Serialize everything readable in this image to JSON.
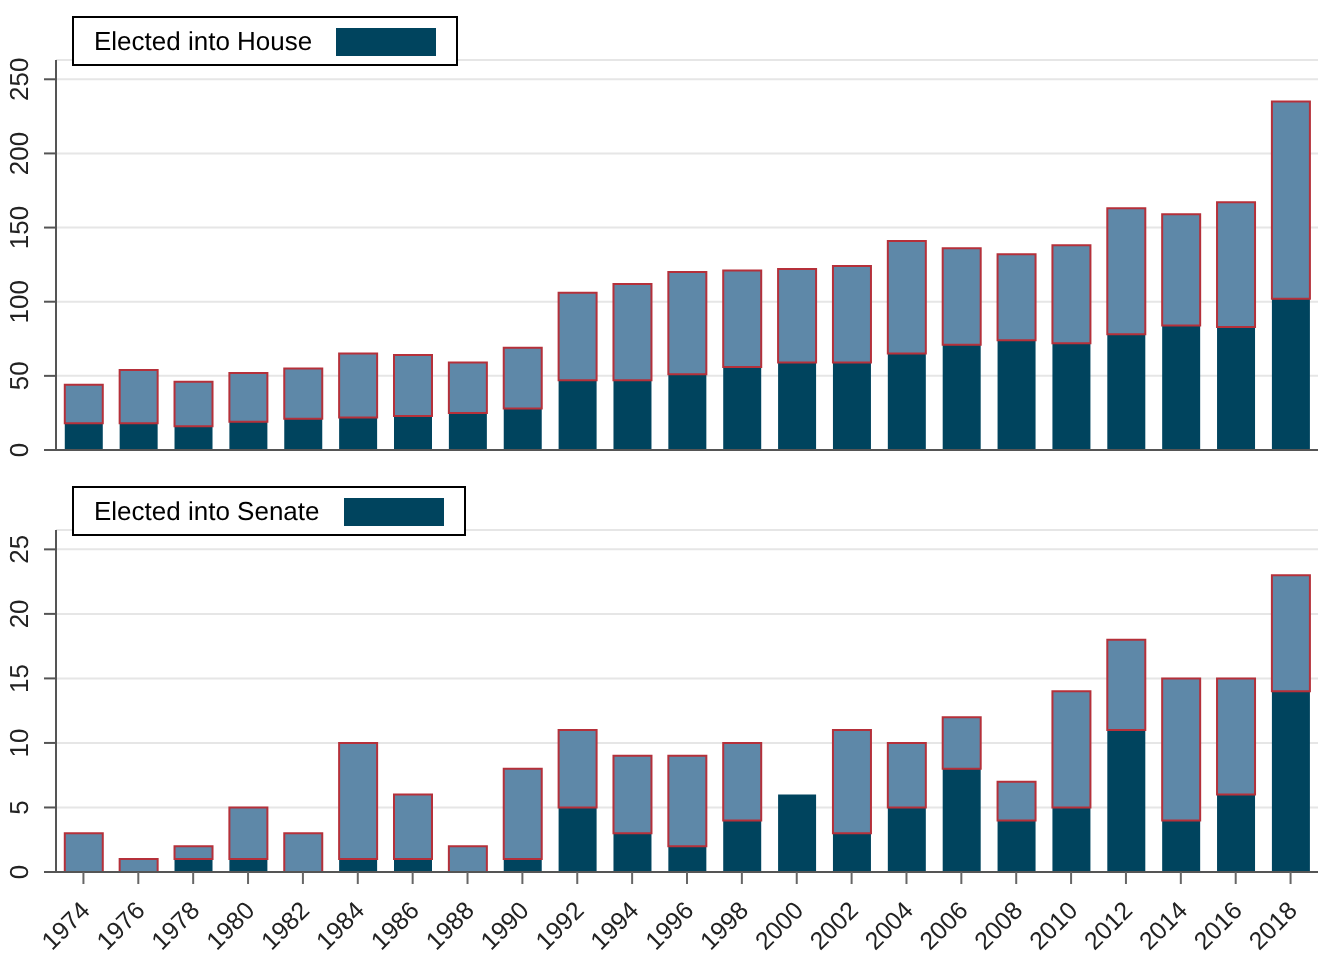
{
  "chart_data": [
    {
      "type": "bar",
      "stacked": true,
      "categories": [
        "1974",
        "1976",
        "1978",
        "1980",
        "1982",
        "1984",
        "1986",
        "1988",
        "1990",
        "1992",
        "1994",
        "1996",
        "1998",
        "2000",
        "2002",
        "2004",
        "2006",
        "2008",
        "2010",
        "2012",
        "2014",
        "2016",
        "2018"
      ],
      "series": [
        {
          "name": "Elected into House",
          "color": "#00445e",
          "values": [
            18,
            18,
            16,
            19,
            21,
            22,
            23,
            25,
            28,
            47,
            47,
            51,
            56,
            59,
            59,
            65,
            71,
            74,
            72,
            78,
            84,
            83,
            102
          ]
        },
        {
          "color": "#5e88a8",
          "values": [
            26,
            36,
            30,
            33,
            34,
            43,
            41,
            34,
            41,
            59,
            65,
            69,
            65,
            63,
            65,
            76,
            65,
            58,
            66,
            85,
            75,
            84,
            133
          ]
        }
      ],
      "ylim": [
        0,
        263
      ],
      "yticks": [
        0,
        50,
        100,
        150,
        200,
        250
      ],
      "grid": "y",
      "legend": "top left",
      "tick_labels": "y"
    },
    {
      "type": "bar",
      "stacked": true,
      "categories": [
        "1974",
        "1976",
        "1978",
        "1980",
        "1982",
        "1984",
        "1986",
        "1988",
        "1990",
        "1992",
        "1994",
        "1996",
        "1998",
        "2000",
        "2002",
        "2004",
        "2006",
        "2008",
        "2010",
        "2012",
        "2014",
        "2016",
        "2018"
      ],
      "series": [
        {
          "name": "Elected into Senate",
          "color": "#00445e",
          "values": [
            0,
            0,
            1,
            1,
            0,
            1,
            1,
            0,
            1,
            5,
            3,
            2,
            4,
            6,
            3,
            5,
            8,
            4,
            5,
            11,
            4,
            6,
            14
          ]
        },
        {
          "color": "#5e88a8",
          "values": [
            3,
            1,
            1,
            4,
            3,
            9,
            5,
            2,
            7,
            6,
            6,
            7,
            6,
            0,
            8,
            5,
            4,
            3,
            9,
            7,
            11,
            9,
            9
          ]
        }
      ],
      "ylim": [
        0,
        26.5
      ],
      "yticks": [
        0,
        5,
        10,
        15,
        20,
        25
      ],
      "grid": "y",
      "legend": "top left"
    }
  ]
}
